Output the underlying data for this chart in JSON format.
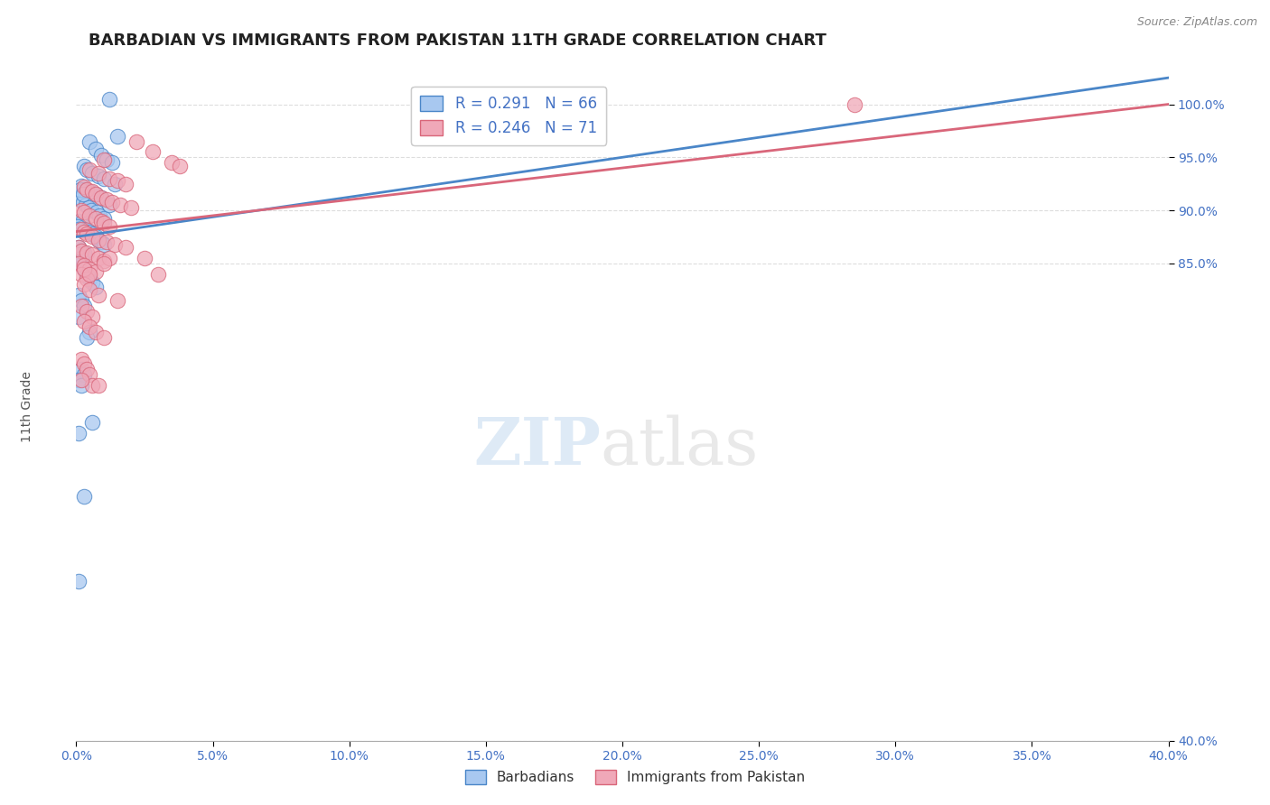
{
  "title": "BARBADIAN VS IMMIGRANTS FROM PAKISTAN 11TH GRADE CORRELATION CHART",
  "source_text": "Source: ZipAtlas.com",
  "ylabel": "11th Grade",
  "xlim": [
    0.0,
    40.0
  ],
  "ylim": [
    40.0,
    103.0
  ],
  "xtick_values": [
    0.0,
    5.0,
    10.0,
    15.0,
    20.0,
    25.0,
    30.0,
    35.0,
    40.0
  ],
  "ytick_values": [
    40.0,
    85.0,
    90.0,
    95.0,
    100.0
  ],
  "legend1_entries": [
    "R = 0.291   N = 66",
    "R = 0.246   N = 71"
  ],
  "legend2_entries": [
    "Barbadians",
    "Immigrants from Pakistan"
  ],
  "blue_scatter_x": [
    1.2,
    1.5,
    0.5,
    0.7,
    0.9,
    1.1,
    1.3,
    0.3,
    0.4,
    0.6,
    0.8,
    1.0,
    1.4,
    0.2,
    0.3,
    0.5,
    0.7,
    0.9,
    0.15,
    0.25,
    0.35,
    0.45,
    0.55,
    0.75,
    0.85,
    1.0,
    0.1,
    0.2,
    0.3,
    0.4,
    0.5,
    0.6,
    0.7,
    0.8,
    0.9,
    1.0,
    0.1,
    0.2,
    0.3,
    1.2,
    0.1,
    0.2,
    0.1,
    0.3,
    0.4,
    0.5,
    0.6,
    0.7,
    0.1,
    0.2,
    0.3,
    0.1,
    0.5,
    0.4,
    0.2,
    0.3,
    0.1,
    0.2,
    0.6,
    0.1,
    0.3,
    0.1,
    0.15,
    0.25,
    0.05,
    0.08
  ],
  "blue_scatter_y": [
    100.5,
    97.0,
    96.5,
    95.8,
    95.2,
    94.8,
    94.5,
    94.2,
    93.8,
    93.5,
    93.2,
    93.0,
    92.5,
    92.3,
    92.0,
    91.8,
    91.5,
    91.2,
    91.0,
    90.8,
    90.5,
    90.3,
    90.0,
    89.8,
    89.5,
    89.2,
    89.0,
    88.8,
    88.5,
    88.2,
    88.0,
    87.8,
    87.5,
    87.2,
    87.0,
    86.8,
    86.5,
    86.2,
    86.0,
    90.5,
    85.8,
    85.5,
    85.0,
    84.5,
    84.0,
    83.5,
    83.2,
    82.8,
    82.0,
    81.5,
    81.0,
    80.0,
    78.5,
    78.0,
    75.0,
    74.5,
    74.0,
    73.5,
    70.0,
    69.0,
    63.0,
    55.0,
    92.0,
    91.5,
    88.5,
    88.2
  ],
  "pink_scatter_x": [
    2.2,
    2.8,
    1.0,
    3.5,
    3.8,
    0.5,
    0.8,
    1.2,
    1.5,
    1.8,
    0.3,
    0.4,
    0.6,
    0.7,
    0.9,
    1.1,
    1.3,
    1.6,
    2.0,
    0.2,
    0.3,
    0.5,
    0.7,
    0.9,
    1.0,
    1.2,
    0.2,
    0.3,
    0.4,
    0.6,
    0.8,
    1.1,
    1.4,
    0.1,
    0.2,
    0.4,
    0.6,
    0.8,
    1.0,
    0.1,
    0.3,
    0.5,
    0.7,
    0.2,
    0.4,
    0.3,
    0.5,
    0.8,
    1.5,
    0.2,
    0.4,
    0.6,
    0.3,
    0.5,
    0.7,
    1.0,
    0.2,
    0.3,
    1.8,
    0.4,
    0.5,
    0.6,
    1.2,
    1.0,
    0.3,
    0.5,
    0.2,
    0.8,
    2.5,
    3.0,
    28.5
  ],
  "pink_scatter_y": [
    96.5,
    95.5,
    94.8,
    94.5,
    94.2,
    93.8,
    93.5,
    93.0,
    92.8,
    92.5,
    92.2,
    92.0,
    91.8,
    91.5,
    91.2,
    91.0,
    90.8,
    90.5,
    90.3,
    90.0,
    89.8,
    89.5,
    89.2,
    89.0,
    88.8,
    88.5,
    88.2,
    88.0,
    87.8,
    87.5,
    87.2,
    87.0,
    86.8,
    86.5,
    86.2,
    86.0,
    85.8,
    85.5,
    85.2,
    85.0,
    84.8,
    84.5,
    84.2,
    84.0,
    83.5,
    83.0,
    82.5,
    82.0,
    81.5,
    81.0,
    80.5,
    80.0,
    79.5,
    79.0,
    78.5,
    78.0,
    76.0,
    75.5,
    86.5,
    75.0,
    74.5,
    73.5,
    85.5,
    85.0,
    84.5,
    84.0,
    74.0,
    73.5,
    85.5,
    84.0,
    100.0
  ],
  "blue_line_x": [
    0.0,
    40.0
  ],
  "blue_line_y": [
    87.5,
    102.5
  ],
  "pink_line_x": [
    0.0,
    40.0
  ],
  "pink_line_y": [
    88.0,
    100.0
  ],
  "blue_color": "#4a86c8",
  "pink_color": "#d9667a",
  "blue_scatter_facecolor": "#a8c8f0",
  "pink_scatter_facecolor": "#f0a8b8",
  "title_fontsize": 13,
  "ylabel_fontsize": 10,
  "tick_fontsize": 10,
  "source_fontsize": 9,
  "watermark_zip_color": "#c8ddf0",
  "watermark_atlas_color": "#c8c8c8",
  "background_color": "#ffffff",
  "grid_color": "#dddddd",
  "tick_color": "#4472c4",
  "spine_color": "#aaaaaa"
}
